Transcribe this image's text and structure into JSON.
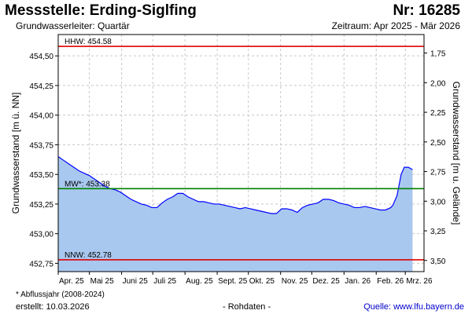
{
  "header": {
    "title": "Messstelle: Erding-Siglfing",
    "number": "Nr: 16285",
    "aquifer": "Grundwasserleiter: Quartär",
    "period": "Zeitraum: Apr 2025 - Mär 2026"
  },
  "footer": {
    "note": "* Abflussjahr (2008-2024)",
    "created": "erstellt:  10.03.2026",
    "raw": "- Rohdaten -",
    "source": "Quelle: www.lfu.bayern.de"
  },
  "colors": {
    "fill": "#a9c8ef",
    "line": "#0000ff",
    "hhw": "#e00000",
    "nnw": "#e00000",
    "mw": "#008000",
    "grid": "#c8c8c8"
  },
  "chart_data": {
    "type": "area",
    "xlabel": "",
    "ylabel": "Grundwasserstand [m ü. NN]",
    "ylabel_right": "Grundwasserstand [m u. Gelände]",
    "ylim": [
      452.68,
      454.68
    ],
    "y_ticks": [
      "452,75",
      "453,00",
      "453,25",
      "453,50",
      "453,75",
      "454,00",
      "454,25",
      "454,50"
    ],
    "y_tick_values": [
      452.75,
      453.0,
      453.25,
      453.5,
      453.75,
      454.0,
      454.25,
      454.5
    ],
    "y_right_ticks": [
      "3,50",
      "3,25",
      "3,00",
      "2,75",
      "2,50",
      "2,25",
      "2,00",
      "1,75"
    ],
    "y_right_tick_values": [
      452.774,
      453.024,
      453.274,
      453.524,
      453.774,
      454.024,
      454.274,
      454.524
    ],
    "x_ticks": [
      "Apr. 25",
      "Mai 25",
      "Juni 25",
      "Juli 25",
      "Aug. 25",
      "Sept. 25",
      "Okt. 25",
      "Nov. 25",
      "Dez. 25",
      "Jan. 26",
      "Feb. 26",
      "Mrz. 26"
    ],
    "x_tick_days": [
      0,
      30,
      61,
      91,
      122,
      153,
      183,
      214,
      244,
      275,
      306,
      334
    ],
    "x_range_days": [
      0,
      352
    ],
    "reference_lines": [
      {
        "label": "HHW: 454.58",
        "value": 454.58,
        "color": "hhw"
      },
      {
        "label": "MW*: 453.38",
        "value": 453.38,
        "color": "mw"
      },
      {
        "label": "NNW: 452.78",
        "value": 452.78,
        "color": "nnw"
      }
    ],
    "series": [
      {
        "x": [
          0,
          5,
          10,
          15,
          20,
          25,
          30,
          35,
          40,
          45,
          50,
          55,
          60,
          65,
          70,
          75,
          80,
          85,
          90,
          95,
          100,
          105,
          110,
          115,
          120,
          125,
          130,
          135,
          140,
          145,
          150,
          155,
          160,
          165,
          170,
          175,
          180,
          185,
          190,
          195,
          200,
          205,
          210,
          215,
          220,
          225,
          230,
          235,
          240,
          245,
          250,
          255,
          260,
          265,
          270,
          275,
          280,
          285,
          290,
          295,
          300,
          305,
          310,
          315,
          320,
          322,
          326,
          330,
          333,
          337,
          341
        ],
        "values": [
          453.65,
          453.62,
          453.59,
          453.56,
          453.53,
          453.51,
          453.49,
          453.46,
          453.43,
          453.4,
          453.38,
          453.37,
          453.35,
          453.32,
          453.29,
          453.27,
          453.25,
          453.24,
          453.22,
          453.22,
          453.26,
          453.29,
          453.31,
          453.34,
          453.34,
          453.31,
          453.29,
          453.27,
          453.27,
          453.26,
          453.25,
          453.25,
          453.24,
          453.23,
          453.22,
          453.21,
          453.22,
          453.21,
          453.2,
          453.19,
          453.18,
          453.17,
          453.17,
          453.21,
          453.21,
          453.2,
          453.18,
          453.22,
          453.24,
          453.25,
          453.26,
          453.29,
          453.29,
          453.28,
          453.26,
          453.25,
          453.24,
          453.22,
          453.22,
          453.23,
          453.22,
          453.21,
          453.2,
          453.2,
          453.22,
          453.24,
          453.32,
          453.5,
          453.56,
          453.56,
          453.54
        ]
      }
    ]
  }
}
